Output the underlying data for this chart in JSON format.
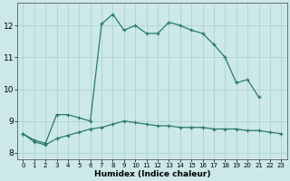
{
  "title": "",
  "xlabel": "Humidex (Indice chaleur)",
  "x": [
    0,
    1,
    2,
    3,
    4,
    5,
    6,
    7,
    8,
    9,
    10,
    11,
    12,
    13,
    14,
    15,
    16,
    17,
    18,
    19,
    20,
    21,
    22,
    23
  ],
  "line1": [
    8.6,
    8.4,
    8.3,
    9.2,
    9.2,
    9.1,
    9.0,
    12.05,
    12.35,
    11.85,
    12.0,
    11.75,
    11.75,
    12.1,
    12.0,
    11.85,
    11.75,
    11.4,
    11.0,
    10.2,
    10.3,
    9.75,
    null,
    null
  ],
  "line2": [
    8.6,
    8.35,
    8.25,
    8.45,
    8.55,
    8.65,
    8.75,
    8.8,
    8.9,
    9.0,
    8.95,
    8.9,
    8.85,
    8.85,
    8.8,
    8.8,
    8.8,
    8.75,
    8.75,
    8.75,
    8.7,
    8.7,
    8.65,
    8.6
  ],
  "line_color": "#2a7a6a",
  "bg_color": "#cce8e8",
  "grid_color": "#aacece",
  "ylim": [
    7.8,
    12.7
  ],
  "yticks": [
    8,
    9,
    10,
    11,
    12
  ],
  "xlim": [
    -0.5,
    23.5
  ],
  "xticks": [
    0,
    1,
    2,
    3,
    4,
    5,
    6,
    7,
    8,
    9,
    10,
    11,
    12,
    13,
    14,
    15,
    16,
    17,
    18,
    19,
    20,
    21,
    22,
    23
  ]
}
